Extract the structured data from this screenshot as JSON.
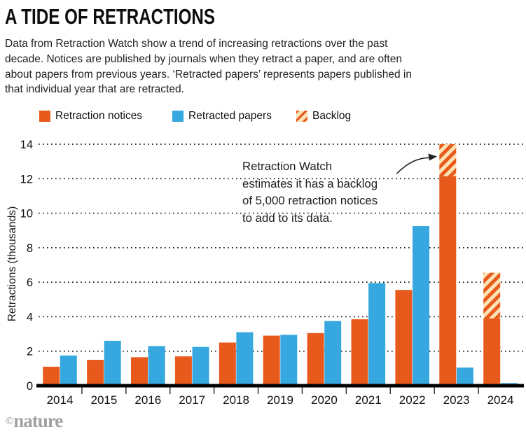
{
  "header": {
    "title": "A TIDE OF RETRACTIONS",
    "description": "Data from Retraction Watch show a trend of increasing retractions over the past\ndecade. Notices are published by journals when they retract a paper, and are often\nabout papers from previous years. ‘Retracted papers’ represents papers published in\nthat individual year that are retracted."
  },
  "legend": {
    "items": [
      {
        "label": "Retraction notices",
        "swatch": "solid-orange"
      },
      {
        "label": "Retracted papers",
        "swatch": "solid-blue"
      },
      {
        "label": "Backlog",
        "swatch": "diagonal-hatch"
      }
    ],
    "hatch_background": "#FBE3B5"
  },
  "annotation": {
    "text": "Retraction Watch\nestimates it has a backlog\nof 5,000 retraction notices\nto add to its data.",
    "arrow_icon": "curved-arrow"
  },
  "chart_data": {
    "type": "bar",
    "title": "A TIDE OF RETRACTIONS",
    "categories": [
      "2014",
      "2015",
      "2016",
      "2017",
      "2018",
      "2019",
      "2020",
      "2021",
      "2022",
      "2023",
      "2024"
    ],
    "series": [
      {
        "name": "Retraction notices",
        "color": "#E8591C",
        "values": [
          1.1,
          1.5,
          1.65,
          1.7,
          2.5,
          2.9,
          3.05,
          3.85,
          5.55,
          12.15,
          3.9
        ]
      },
      {
        "name": "Retracted papers",
        "color": "#36A7DF",
        "values": [
          1.75,
          2.6,
          2.3,
          2.25,
          3.1,
          2.95,
          3.75,
          5.95,
          9.25,
          1.05,
          0.15
        ]
      },
      {
        "name": "Backlog",
        "style": "hatched",
        "stacked_on": "Retraction notices",
        "top_values": [
          null,
          null,
          null,
          null,
          null,
          null,
          null,
          null,
          null,
          14.0,
          6.55
        ]
      }
    ],
    "xlabel": "",
    "ylabel": "Retractions (thousands)",
    "ylim": [
      0,
      14
    ],
    "yticks": [
      0,
      2,
      4,
      6,
      8,
      10,
      12,
      14
    ],
    "grid": "dotted-horizontal",
    "legend_position": "top",
    "axis_color": "#000000",
    "gridline_color": "#1a1a1a"
  },
  "footer": {
    "copyright": "©",
    "brand": "nature"
  }
}
